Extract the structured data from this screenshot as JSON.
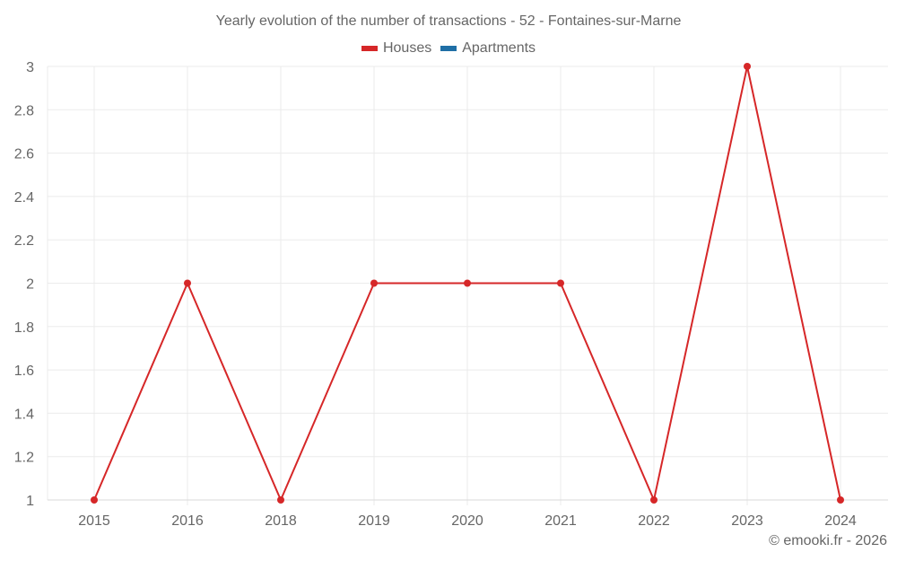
{
  "chart_data": {
    "type": "line",
    "title": "Yearly evolution of the number of transactions - 52 - Fontaines-sur-Marne",
    "categories": [
      "2015",
      "2016",
      "2018",
      "2019",
      "2020",
      "2021",
      "2022",
      "2023",
      "2024"
    ],
    "series": [
      {
        "name": "Houses",
        "color": "#d62728",
        "values": [
          1,
          2,
          1,
          2,
          2,
          2,
          1,
          3,
          1
        ]
      },
      {
        "name": "Apartments",
        "color": "#1f6fa6",
        "values": []
      }
    ],
    "xlabel": "",
    "ylabel": "",
    "ylim": [
      1,
      3
    ],
    "yticks": [
      "1",
      "1.2",
      "1.4",
      "1.6",
      "1.8",
      "2",
      "2.2",
      "2.4",
      "2.6",
      "2.8",
      "3"
    ],
    "grid": true,
    "legend_position": "top"
  },
  "header": {
    "title": "Yearly evolution of the number of transactions - 52 - Fontaines-sur-Marne"
  },
  "legend": {
    "items": [
      {
        "label": "Houses",
        "color": "#d62728"
      },
      {
        "label": "Apartments",
        "color": "#1f6fa6"
      }
    ]
  },
  "footer": {
    "credit": "© emooki.fr - 2026"
  }
}
